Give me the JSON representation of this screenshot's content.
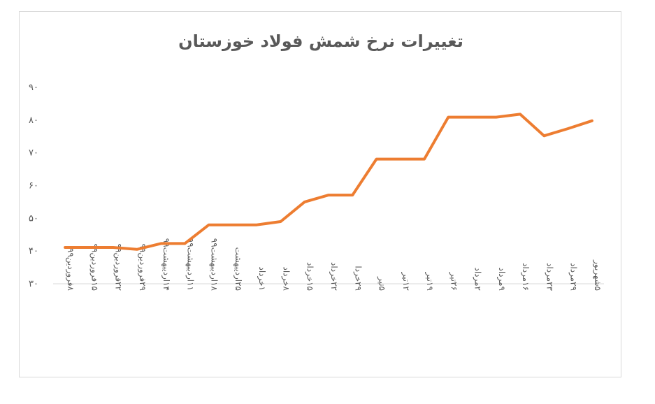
{
  "chart_data": {
    "type": "line",
    "title": "تغییرات نرخ شمش فولاد خوزستان",
    "xlabel": "",
    "ylabel": "",
    "ylim": [
      30,
      90
    ],
    "yticks": [
      "۳۰",
      "۴۰",
      "۵۰",
      "۶۰",
      "۷۰",
      "۸۰",
      "۹۰"
    ],
    "grid": false,
    "line_color": "#ED7D31",
    "categories": [
      "۸فروردین۹۹",
      "۱۵فروردین۹۹",
      "۲۲فروردین۹۹",
      "۲۹فروردین۹۹",
      "۱۴اردیبهشت۹۹",
      "۱۱اردیبهشت۹۹",
      "۱۸اردیبهشت۹۹",
      "۲۵اردیبهشت",
      "۱خرداد",
      "۸خرداد",
      "۱۵خرداد",
      "۲۲خرداد",
      "۲۹خردا",
      "۵تیر",
      "۱۲تیر",
      "۱۹تیر",
      "۲۶تیر",
      "۲مرداد",
      "۹مرداد",
      "۱۶مرداد",
      "۲۳مرداد",
      "۲۹مرداد",
      "۵شهریور"
    ],
    "series": [
      {
        "values": [
          41.1,
          41.1,
          41.1,
          40.5,
          42.3,
          42.3,
          48.0,
          48.0,
          48.0,
          49.0,
          55.0,
          57.1,
          57.1,
          68.1,
          68.1,
          68.1,
          80.9,
          80.9,
          80.9,
          81.8,
          75.2,
          77.4,
          79.8
        ]
      }
    ]
  }
}
